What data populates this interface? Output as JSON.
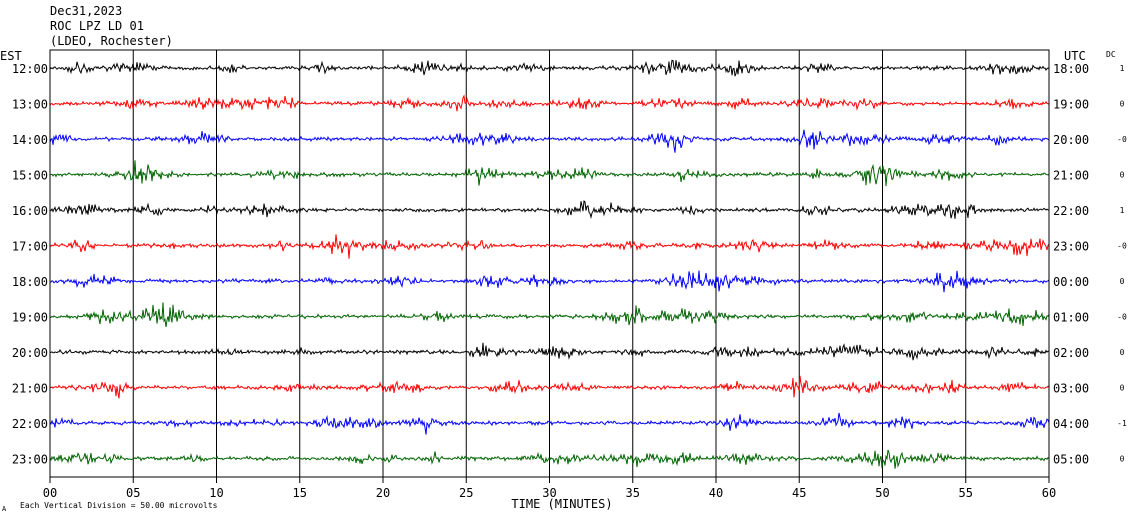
{
  "header": {
    "date": "Dec31,2023",
    "station": "ROC LPZ LD 01",
    "network": "(LDEO, Rochester)"
  },
  "chart_data": {
    "type": "line",
    "title": "Dec31,2023",
    "xlabel": "TIME (MINUTES)",
    "xlim": [
      0,
      60
    ],
    "x_ticks": [
      "00",
      "05",
      "10",
      "15",
      "20",
      "25",
      "30",
      "35",
      "40",
      "45",
      "50",
      "55",
      "60"
    ],
    "left_axis_label": "EST",
    "right_axis_label": "UTC",
    "dc_label": "DC",
    "grid": true,
    "footer_note": "Each Vertical Division =   50.00 microvolts",
    "footer_mark": "A",
    "colors": [
      "#000000",
      "#ff0000",
      "#0000ff",
      "#006400"
    ],
    "rows": [
      {
        "est": "12:00",
        "utc": "18:00",
        "dc": "1"
      },
      {
        "est": "13:00",
        "utc": "19:00",
        "dc": "0"
      },
      {
        "est": "14:00",
        "utc": "20:00",
        "dc": "-0"
      },
      {
        "est": "15:00",
        "utc": "21:00",
        "dc": "0"
      },
      {
        "est": "16:00",
        "utc": "22:00",
        "dc": "1"
      },
      {
        "est": "17:00",
        "utc": "23:00",
        "dc": "-0"
      },
      {
        "est": "18:00",
        "utc": "00:00",
        "dc": "0"
      },
      {
        "est": "19:00",
        "utc": "01:00",
        "dc": "-0"
      },
      {
        "est": "20:00",
        "utc": "02:00",
        "dc": "0"
      },
      {
        "est": "21:00",
        "utc": "03:00",
        "dc": "0"
      },
      {
        "est": "22:00",
        "utc": "04:00",
        "dc": "-1"
      },
      {
        "est": "23:00",
        "utc": "05:00",
        "dc": "0"
      }
    ]
  }
}
